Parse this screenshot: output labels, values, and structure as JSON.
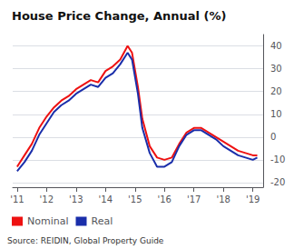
{
  "chart_data": {
    "type": "line",
    "title": "House Price Change, Annual (%)",
    "annotations": [
      "Source: REIDIN, Global Property Guide"
    ],
    "x": [
      2011.0,
      2011.25,
      2011.5,
      2011.75,
      2012.0,
      2012.25,
      2012.5,
      2012.75,
      2013.0,
      2013.25,
      2013.5,
      2013.75,
      2014.0,
      2014.25,
      2014.5,
      2014.75,
      2014.9,
      2015.1,
      2015.25,
      2015.5,
      2015.75,
      2016.0,
      2016.25,
      2016.5,
      2016.75,
      2017.0,
      2017.25,
      2017.5,
      2017.75,
      2018.0,
      2018.25,
      2018.5,
      2018.75,
      2019.0,
      2019.15
    ],
    "series": [
      {
        "name": "Nominal",
        "color": "#ee1111",
        "values": [
          -13,
          -8,
          -3,
          4,
          9,
          13,
          16,
          18,
          21,
          23,
          25,
          24,
          29,
          31,
          34,
          40,
          37,
          22,
          8,
          -4,
          -9,
          -10,
          -9,
          -3,
          2,
          4,
          4,
          2,
          0,
          -2,
          -4,
          -6,
          -7,
          -8,
          -8
        ]
      },
      {
        "name": "Real",
        "color": "#1a2eaa",
        "values": [
          -15,
          -11,
          -6,
          1,
          6,
          11,
          14,
          16,
          19,
          21,
          23,
          22,
          26,
          28,
          32,
          37,
          34,
          19,
          4,
          -7,
          -13,
          -13,
          -11,
          -4,
          1,
          3,
          3,
          1,
          -1,
          -4,
          -6,
          -8,
          -9,
          -10,
          -9
        ]
      }
    ],
    "xlim": [
      2010.85,
      2019.35
    ],
    "xticks": [
      {
        "value": 2011,
        "label": "'11"
      },
      {
        "value": 2012,
        "label": "'12"
      },
      {
        "value": 2013,
        "label": "'13"
      },
      {
        "value": 2014,
        "label": "'14"
      },
      {
        "value": 2015,
        "label": "'15"
      },
      {
        "value": 2016,
        "label": "'16"
      },
      {
        "value": 2017,
        "label": "'17"
      },
      {
        "value": 2018,
        "label": "'18"
      },
      {
        "value": 2019,
        "label": "'19"
      }
    ],
    "ylim": [
      -22,
      45
    ],
    "yticks": [
      -20,
      -10,
      0,
      10,
      20,
      30,
      40
    ],
    "grid": true,
    "legend": "bottom"
  }
}
